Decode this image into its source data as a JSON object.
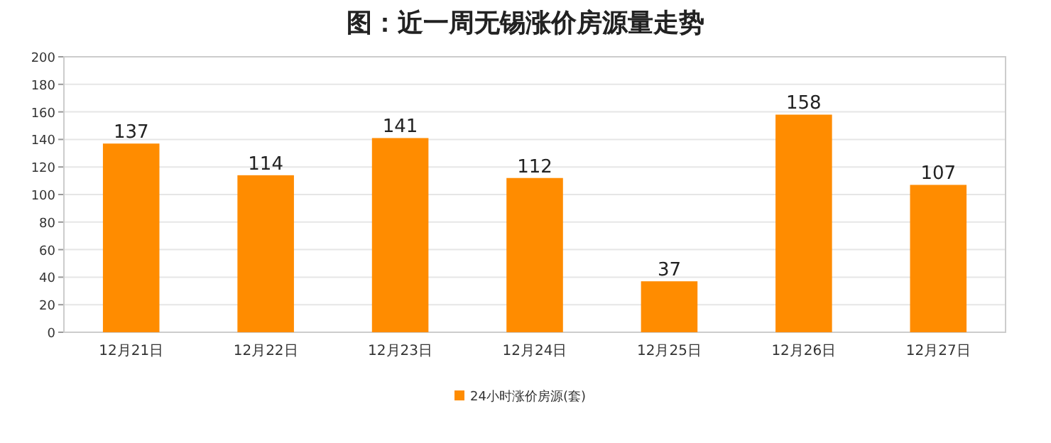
{
  "chart_data": {
    "type": "bar",
    "title": "图：近一周无锡涨价房源量走势",
    "categories": [
      "12月21日",
      "12月22日",
      "12月23日",
      "12月24日",
      "12月25日",
      "12月26日",
      "12月27日"
    ],
    "series": [
      {
        "name": "24小时涨价房源(套)",
        "color": "#ff8c00",
        "values": [
          137,
          114,
          141,
          112,
          37,
          158,
          107
        ]
      }
    ],
    "ylim": [
      0,
      200
    ],
    "yticks": [
      0,
      20,
      40,
      60,
      80,
      100,
      120,
      140,
      160,
      180,
      200
    ],
    "grid": "y",
    "data_labels": true,
    "legend": "bottom"
  }
}
